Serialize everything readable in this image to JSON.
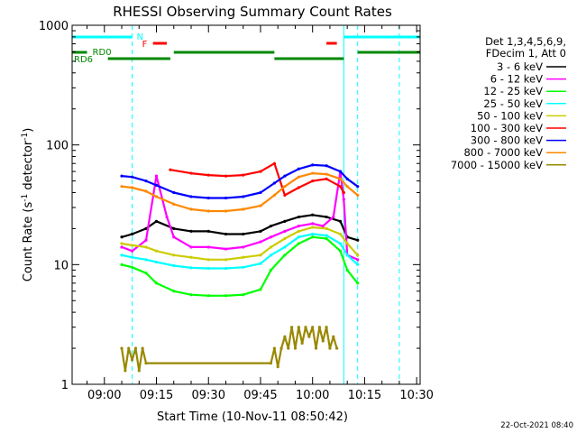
{
  "chart_data": {
    "type": "line",
    "title": "RHESSI Observing Summary Count Rates",
    "xlabel": "Start Time (10-Nov-11 08:50:42)",
    "ylabel_parts": [
      "Count Rate (s",
      "-1",
      " detector",
      "-1",
      ")"
    ],
    "yscale": "log",
    "ylim": [
      1,
      1000
    ],
    "xlim": [
      "08:50:42",
      "10:31:00"
    ],
    "xticks": [
      "09:00",
      "09:15",
      "09:30",
      "09:45",
      "10:00",
      "10:15",
      "10:30"
    ],
    "yticks": [
      "1",
      "10",
      "100",
      "1000"
    ],
    "legend_header": [
      "Det 1,3,4,5,6,9,",
      "FDecim 1, Att 0"
    ],
    "timestamp": "22-Oct-2021 08:40",
    "flag_labels": {
      "n": "N",
      "f": "F",
      "rd0": "RD0",
      "rd6": "RD6"
    },
    "series": [
      {
        "name": "3 - 6 keV",
        "color": "#000000",
        "x": [
          "09:05",
          "09:08",
          "09:12",
          "09:15",
          "09:20",
          "09:25",
          "09:30",
          "09:35",
          "09:40",
          "09:45",
          "09:48",
          "09:52",
          "09:56",
          "10:00",
          "10:04",
          "10:08",
          "10:10",
          "10:13"
        ],
        "y": [
          17,
          18,
          20,
          23,
          20,
          19,
          19,
          18,
          18,
          19,
          21,
          23,
          25,
          26,
          25,
          23,
          17,
          16
        ]
      },
      {
        "name": "6 - 12 keV",
        "color": "#ff00ff",
        "x": [
          "09:05",
          "09:08",
          "09:12",
          "09:15",
          "09:18",
          "09:20",
          "09:25",
          "09:30",
          "09:35",
          "09:40",
          "09:45",
          "09:48",
          "09:52",
          "09:56",
          "10:00",
          "10:03",
          "10:06",
          "10:08",
          "10:09",
          "10:10",
          "10:13"
        ],
        "y": [
          14,
          13,
          16,
          55,
          25,
          17,
          14,
          14,
          13.5,
          14,
          15.5,
          17,
          19,
          21,
          22,
          21,
          25,
          60,
          35,
          12,
          11
        ]
      },
      {
        "name": "12 - 25 keV",
        "color": "#00ff00",
        "x": [
          "09:05",
          "09:08",
          "09:12",
          "09:15",
          "09:20",
          "09:25",
          "09:30",
          "09:35",
          "09:40",
          "09:45",
          "09:48",
          "09:52",
          "09:56",
          "10:00",
          "10:04",
          "10:08",
          "10:10",
          "10:13"
        ],
        "y": [
          10,
          9.5,
          8.5,
          7,
          6,
          5.6,
          5.5,
          5.5,
          5.6,
          6.2,
          9,
          12,
          15,
          17,
          16.5,
          13,
          9,
          7
        ]
      },
      {
        "name": "25 - 50 keV",
        "color": "#00ffff",
        "x": [
          "09:05",
          "09:08",
          "09:12",
          "09:15",
          "09:20",
          "09:25",
          "09:30",
          "09:35",
          "09:40",
          "09:45",
          "09:48",
          "09:52",
          "09:56",
          "10:00",
          "10:04",
          "10:08",
          "10:10",
          "10:13"
        ],
        "y": [
          12,
          11.5,
          11,
          10.5,
          9.8,
          9.4,
          9.3,
          9.3,
          9.5,
          10.2,
          12,
          14,
          17,
          18,
          17.5,
          15,
          12,
          10
        ]
      },
      {
        "name": "50 - 100 keV",
        "color": "#cccc00",
        "x": [
          "09:05",
          "09:08",
          "09:12",
          "09:15",
          "09:20",
          "09:25",
          "09:30",
          "09:35",
          "09:40",
          "09:45",
          "09:48",
          "09:52",
          "09:56",
          "10:00",
          "10:04",
          "10:08",
          "10:10",
          "10:13"
        ],
        "y": [
          15,
          14.5,
          14,
          13,
          12,
          11.5,
          11,
          11,
          11.5,
          12,
          14,
          16.5,
          19,
          20.5,
          20,
          18,
          15,
          12
        ]
      },
      {
        "name": "100 - 300 keV",
        "color": "#ff0000",
        "x": [
          "09:19",
          "09:25",
          "09:30",
          "09:35",
          "09:40",
          "09:45",
          "09:49",
          "09:52",
          "09:56",
          "10:00",
          "10:04",
          "10:08",
          "10:09"
        ],
        "y": [
          62,
          58,
          56,
          55,
          56,
          60,
          70,
          38,
          44,
          50,
          52,
          45,
          40
        ]
      },
      {
        "name": "300 - 800 keV",
        "color": "#0000ff",
        "x": [
          "09:05",
          "09:08",
          "09:12",
          "09:15",
          "09:20",
          "09:25",
          "09:30",
          "09:35",
          "09:40",
          "09:45",
          "09:49",
          "09:52",
          "09:56",
          "10:00",
          "10:04",
          "10:08",
          "10:10",
          "10:13"
        ],
        "y": [
          55,
          54,
          50,
          46,
          40,
          37,
          36,
          36,
          37,
          40,
          48,
          55,
          63,
          68,
          67,
          60,
          52,
          45
        ]
      },
      {
        "name": "800 - 7000 keV",
        "color": "#ff8800",
        "x": [
          "09:05",
          "09:08",
          "09:12",
          "09:15",
          "09:20",
          "09:25",
          "09:30",
          "09:35",
          "09:40",
          "09:45",
          "09:49",
          "09:52",
          "09:56",
          "10:00",
          "10:04",
          "10:08",
          "10:10",
          "10:13"
        ],
        "y": [
          45,
          44,
          41,
          37,
          32,
          29,
          28,
          28,
          29,
          31,
          38,
          45,
          54,
          58,
          57,
          52,
          45,
          38
        ]
      },
      {
        "name": "7000 - 15000 keV",
        "color": "#998800",
        "x": [
          "09:05",
          "09:06",
          "09:07",
          "09:08",
          "09:09",
          "09:10",
          "09:11",
          "09:12",
          "09:48",
          "09:49",
          "09:50",
          "09:51",
          "09:52",
          "09:53",
          "09:54",
          "09:55",
          "09:56",
          "09:57",
          "09:58",
          "09:59",
          "10:00",
          "10:01",
          "10:02",
          "10:03",
          "10:04",
          "10:05",
          "10:06",
          "10:07"
        ],
        "y": [
          2,
          1.3,
          2,
          1.6,
          2,
          1.3,
          2,
          1.5,
          1.5,
          2,
          1.4,
          2,
          2.5,
          2,
          3,
          2,
          3,
          2.2,
          3,
          2.5,
          3,
          2,
          3,
          2.3,
          3,
          2,
          2.5,
          2
        ]
      }
    ]
  }
}
